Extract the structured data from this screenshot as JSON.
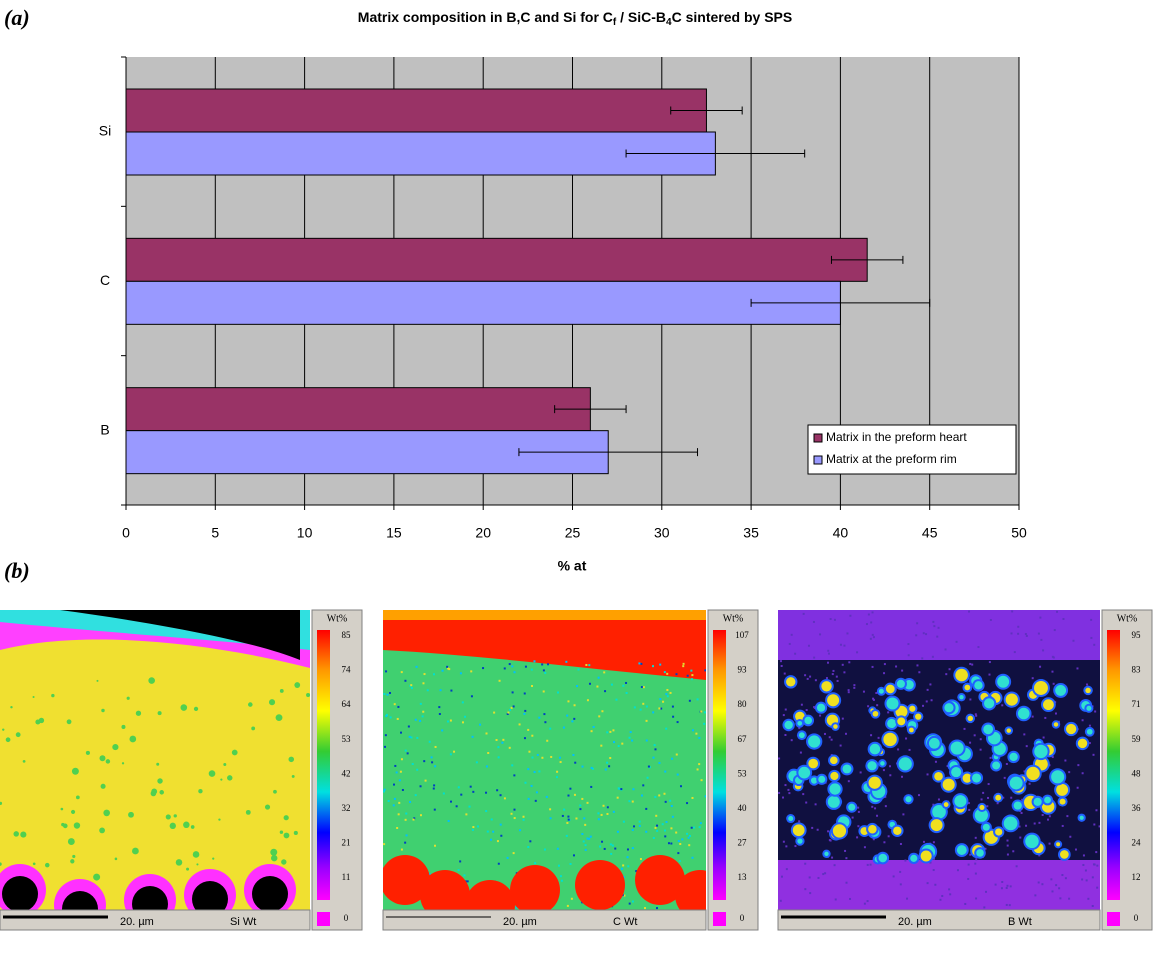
{
  "chart_data": {
    "type": "hbar",
    "title": [
      "Matrix composition in B,C and Si for  C",
      "f",
      " / SiC-B",
      "4",
      "C sintered by SPS"
    ],
    "categories": [
      "B",
      "C",
      "Si"
    ],
    "series": [
      {
        "name": "Matrix in the preform heart",
        "color": "#993366",
        "values": [
          26,
          41.5,
          32.5
        ],
        "errors": [
          2,
          2,
          2
        ]
      },
      {
        "name": "Matrix at the preform rim",
        "color": "#9999ff",
        "values": [
          27,
          40,
          33
        ],
        "errors": [
          5,
          5,
          5
        ]
      }
    ],
    "xlabel": "% at",
    "xlim": [
      0,
      50
    ],
    "xticks": [
      0,
      5,
      10,
      15,
      20,
      25,
      30,
      35,
      40,
      45,
      50
    ],
    "grid": true,
    "legend": "lower right"
  },
  "panel_labels": [
    "(a)",
    "(b)"
  ],
  "maps": [
    {
      "colorbar_title": "Wt%",
      "colorbar_ticks": [
        "85",
        "74",
        "64",
        "53",
        "42",
        "32",
        "21",
        "11",
        "0"
      ],
      "scale_label": "20. µm",
      "element_label": "Si Wt"
    },
    {
      "colorbar_title": "Wt%",
      "colorbar_ticks": [
        "107",
        "93",
        "80",
        "67",
        "53",
        "40",
        "27",
        "13",
        "0"
      ],
      "scale_label": "20. µm",
      "element_label": "C Wt"
    },
    {
      "colorbar_title": "Wt%",
      "colorbar_ticks": [
        "95",
        "83",
        "71",
        "59",
        "48",
        "36",
        "24",
        "12",
        "0"
      ],
      "scale_label": "20. µm",
      "element_label": "B Wt"
    }
  ]
}
